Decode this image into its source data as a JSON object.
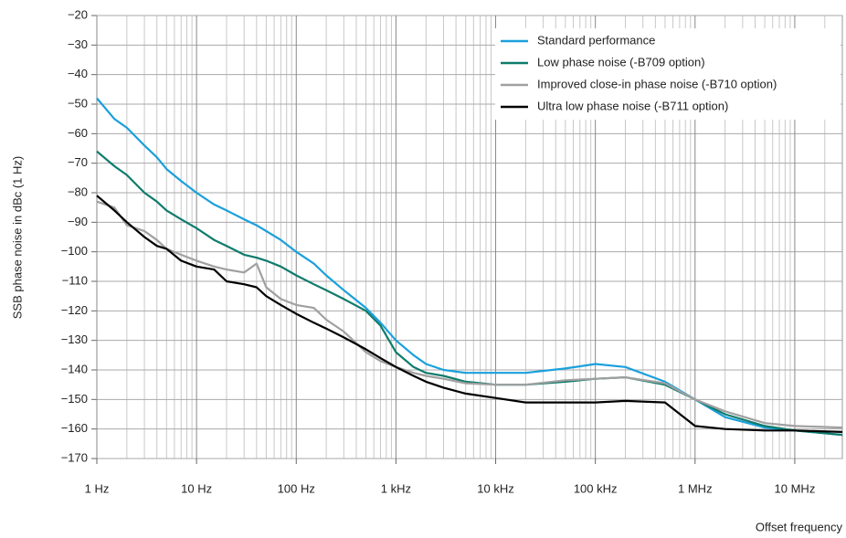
{
  "chart_data": {
    "type": "line",
    "y_label": "SSB phase noise in dBc (1 Hz)",
    "x_label": "Offset frequency",
    "log_x": true,
    "grid": true,
    "minor_xgrid": true,
    "legend": "top-right",
    "xlim": [
      1,
      30000000
    ],
    "ylim": [
      -170,
      -20
    ],
    "xticks": [
      {
        "value": 1,
        "label": "1 Hz"
      },
      {
        "value": 10,
        "label": "10 Hz"
      },
      {
        "value": 100,
        "label": "100 Hz"
      },
      {
        "value": 1000,
        "label": "1 kHz"
      },
      {
        "value": 10000,
        "label": "10 kHz"
      },
      {
        "value": 100000,
        "label": "100 kHz"
      },
      {
        "value": 1000000,
        "label": "1 MHz"
      },
      {
        "value": 10000000,
        "label": "10 MHz"
      }
    ],
    "yticks": [
      {
        "value": -20,
        "label": "−20"
      },
      {
        "value": -30,
        "label": "−30"
      },
      {
        "value": -40,
        "label": "−40"
      },
      {
        "value": -50,
        "label": "−50"
      },
      {
        "value": -60,
        "label": "−60"
      },
      {
        "value": -70,
        "label": "−70"
      },
      {
        "value": -80,
        "label": "−80"
      },
      {
        "value": -90,
        "label": "−90"
      },
      {
        "value": -100,
        "label": "−100"
      },
      {
        "value": -110,
        "label": "−110"
      },
      {
        "value": -120,
        "label": "−120"
      },
      {
        "value": -130,
        "label": "−130"
      },
      {
        "value": -140,
        "label": "−140"
      },
      {
        "value": -150,
        "label": "−150"
      },
      {
        "value": -160,
        "label": "−160"
      },
      {
        "value": -170,
        "label": "−170"
      }
    ],
    "x": [
      1,
      1.5,
      2,
      3,
      4,
      5,
      7,
      10,
      15,
      20,
      30,
      40,
      50,
      70,
      100,
      150,
      200,
      300,
      500,
      700,
      1000,
      1500,
      2000,
      3000,
      5000,
      10000,
      20000,
      50000,
      100000,
      200000,
      500000,
      1000000,
      2000000,
      5000000,
      10000000,
      30000000
    ],
    "series": [
      {
        "name": "Standard performance",
        "color": "#1aa0dc",
        "values": [
          -48,
          -55,
          -58,
          -64,
          -68,
          -72,
          -76,
          -80,
          -84,
          -86,
          -89,
          -91,
          -93,
          -96,
          -100,
          -104,
          -108,
          -113,
          -119,
          -124,
          -130,
          -135,
          -138,
          -140,
          -141,
          -141,
          -141,
          -139.5,
          -138,
          -139,
          -144,
          -150,
          -156,
          -159.5,
          -160.5,
          -162
        ]
      },
      {
        "name": "Low phase noise (-B709 option)",
        "color": "#0f7b6c",
        "values": [
          -66,
          -71,
          -74,
          -80,
          -83,
          -86,
          -89,
          -92,
          -96,
          -98,
          -101,
          -102,
          -103,
          -105,
          -108,
          -111,
          -113,
          -116,
          -120,
          -125,
          -134,
          -139,
          -141,
          -142,
          -144,
          -145,
          -145,
          -144,
          -143,
          -142.5,
          -145,
          -150,
          -155,
          -159,
          -160.5,
          -162
        ]
      },
      {
        "name": "Improved close-in phase noise (-B710 option)",
        "color": "#a0a0a0",
        "values": [
          -83,
          -85,
          -91,
          -93,
          -96,
          -99,
          -101,
          -103,
          -105,
          -106,
          -107,
          -104,
          -112,
          -116,
          -118,
          -119,
          -123,
          -127,
          -134,
          -137,
          -139,
          -141,
          -142,
          -143,
          -144.5,
          -145,
          -145,
          -143.5,
          -143,
          -142.5,
          -144.5,
          -150,
          -154,
          -158,
          -159,
          -159.5
        ]
      },
      {
        "name": "Ultra low phase noise (-B711 option)",
        "color": "#000000",
        "values": [
          -81,
          -86,
          -90,
          -95,
          -98,
          -99,
          -103,
          -105,
          -106,
          -110,
          -111,
          -112,
          -115,
          -118,
          -121,
          -124,
          -126,
          -129,
          -133,
          -136,
          -139,
          -142,
          -144,
          -146,
          -148,
          -149.5,
          -151,
          -151,
          -151,
          -150.5,
          -151,
          -159,
          -160,
          -160.5,
          -160.5,
          -161
        ]
      }
    ]
  }
}
